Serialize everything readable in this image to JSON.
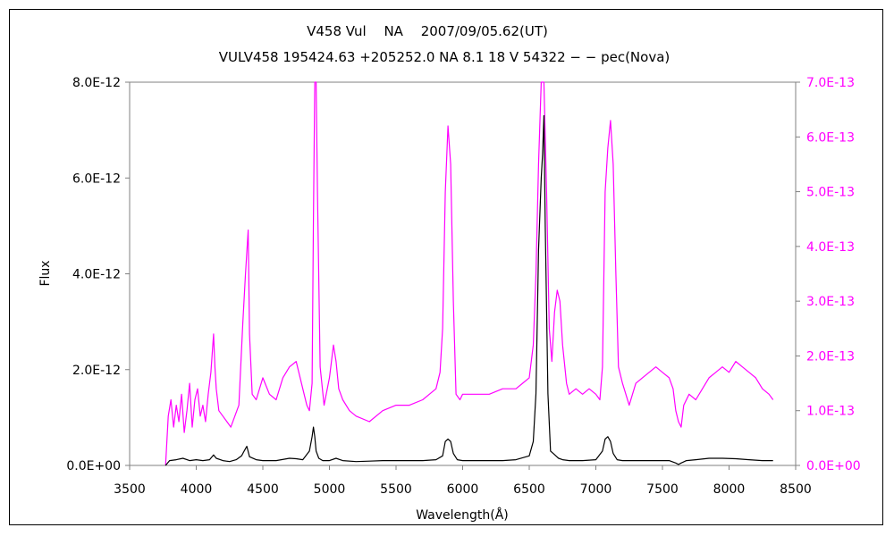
{
  "chart_data": {
    "type": "line",
    "title": "V458 Vul　 NA　 2007/09/05.62(UT)",
    "subtitle": "VULV458 195424.63 +205252.0 NA 8.1 18 V 54322 − − pec(Nova)",
    "xlabel": "Wavelength(Å)",
    "ylabel": "Flux",
    "y2label": "",
    "xlim": [
      3500,
      8500
    ],
    "ylim": [
      0,
      8e-12
    ],
    "y2lim": [
      0,
      7e-13
    ],
    "x_ticks": [
      "3500",
      "4000",
      "4500",
      "5000",
      "5500",
      "6000",
      "6500",
      "7000",
      "7500",
      "8000",
      "8500"
    ],
    "y_ticks": [
      "0.0E+00",
      "2.0E-12",
      "4.0E-12",
      "6.0E-12",
      "8.0E-12"
    ],
    "y2_ticks": [
      "0.0E+00",
      "1.0E-13",
      "2.0E-13",
      "3.0E-13",
      "4.0E-13",
      "5.0E-13",
      "6.0E-13",
      "7.0E-13"
    ],
    "grid": false,
    "legend": "none",
    "colors": {
      "primary": "#000000",
      "secondary": "#ff00ff"
    },
    "series": [
      {
        "axis": "left",
        "x": [
          3770,
          3800,
          3850,
          3900,
          3950,
          4000,
          4050,
          4100,
          4130,
          4150,
          4200,
          4250,
          4300,
          4340,
          4360,
          4380,
          4400,
          4450,
          4500,
          4600,
          4700,
          4750,
          4800,
          4850,
          4870,
          4880,
          4890,
          4900,
          4920,
          4950,
          5000,
          5050,
          5100,
          5200,
          5300,
          5400,
          5500,
          5600,
          5700,
          5800,
          5850,
          5870,
          5890,
          5910,
          5930,
          5960,
          6000,
          6100,
          6200,
          6300,
          6400,
          6500,
          6530,
          6550,
          6570,
          6590,
          6600,
          6610,
          6620,
          6640,
          6660,
          6680,
          6700,
          6720,
          6750,
          6800,
          6900,
          7000,
          7050,
          7070,
          7090,
          7110,
          7130,
          7160,
          7200,
          7300,
          7400,
          7500,
          7550,
          7600,
          7620,
          7640,
          7680,
          7750,
          7850,
          7950,
          8050,
          8150,
          8250,
          8330
        ],
        "y": [
          0.0,
          1e-13,
          1.2e-13,
          1.5e-13,
          1e-13,
          1.2e-13,
          1e-13,
          1.2e-13,
          2.2e-13,
          1.5e-13,
          1e-13,
          8e-14,
          1.2e-13,
          2e-13,
          3e-13,
          4e-13,
          1.8e-13,
          1.2e-13,
          1e-13,
          1e-13,
          1.5e-13,
          1.4e-13,
          1.2e-13,
          3e-13,
          6e-13,
          8e-13,
          6e-13,
          3e-13,
          1.5e-13,
          1e-13,
          1e-13,
          1.5e-13,
          1e-13,
          8e-14,
          9e-14,
          1e-13,
          1e-13,
          1e-13,
          1e-13,
          1.2e-13,
          2e-13,
          5e-13,
          5.5e-13,
          5e-13,
          2.5e-13,
          1.2e-13,
          1e-13,
          1e-13,
          1e-13,
          1e-13,
          1.2e-13,
          2e-13,
          5e-13,
          1.5e-12,
          4.5e-12,
          6e-12,
          6.5e-12,
          7.3e-12,
          5e-12,
          1.5e-12,
          3e-13,
          2.5e-13,
          2e-13,
          1.5e-13,
          1.2e-13,
          1e-13,
          1e-13,
          1.2e-13,
          3e-13,
          5.5e-13,
          6e-13,
          5e-13,
          2.5e-13,
          1.2e-13,
          1e-13,
          1e-13,
          1e-13,
          1e-13,
          1e-13,
          5e-14,
          2e-14,
          5e-14,
          1e-13,
          1.2e-13,
          1.5e-13,
          1.5e-13,
          1.4e-13,
          1.2e-13,
          1e-13,
          1e-13
        ]
      },
      {
        "axis": "right",
        "x": [
          3770,
          3790,
          3810,
          3830,
          3850,
          3870,
          3890,
          3910,
          3930,
          3950,
          3970,
          3990,
          4010,
          4030,
          4050,
          4070,
          4090,
          4110,
          4130,
          4140,
          4150,
          4170,
          4200,
          4230,
          4260,
          4290,
          4320,
          4350,
          4370,
          4390,
          4400,
          4420,
          4450,
          4500,
          4550,
          4600,
          4650,
          4700,
          4750,
          4800,
          4830,
          4850,
          4870,
          4880,
          4890,
          4900,
          4910,
          4930,
          4960,
          5000,
          5030,
          5050,
          5070,
          5100,
          5150,
          5200,
          5300,
          5400,
          5500,
          5600,
          5700,
          5750,
          5800,
          5830,
          5850,
          5870,
          5890,
          5910,
          5930,
          5950,
          5980,
          6000,
          6100,
          6200,
          6300,
          6400,
          6450,
          6500,
          6530,
          6550,
          6570,
          6590,
          6610,
          6630,
          6650,
          6670,
          6690,
          6710,
          6730,
          6750,
          6780,
          6800,
          6850,
          6900,
          6950,
          7000,
          7030,
          7050,
          7070,
          7090,
          7110,
          7130,
          7150,
          7170,
          7200,
          7250,
          7300,
          7350,
          7400,
          7450,
          7500,
          7550,
          7580,
          7600,
          7620,
          7640,
          7660,
          7700,
          7750,
          7800,
          7850,
          7900,
          7950,
          8000,
          8050,
          8100,
          8150,
          8200,
          8250,
          8300,
          8330
        ],
        "y": [
          0.0,
          9e-14,
          1.2e-13,
          7e-14,
          1.1e-13,
          8e-14,
          1.3e-13,
          6e-14,
          1e-13,
          1.5e-13,
          7e-14,
          1.2e-13,
          1.4e-13,
          9e-14,
          1.1e-13,
          8e-14,
          1.3e-13,
          1.7e-13,
          2.4e-13,
          1.8e-13,
          1.4e-13,
          1e-13,
          9e-14,
          8e-14,
          7e-14,
          9e-14,
          1.1e-13,
          2.6e-13,
          3.5e-13,
          4.3e-13,
          2.4e-13,
          1.3e-13,
          1.2e-13,
          1.6e-13,
          1.3e-13,
          1.2e-13,
          1.6e-13,
          1.8e-13,
          1.9e-13,
          1.4e-13,
          1.1e-13,
          1e-13,
          1.5e-13,
          4.5e-13,
          7e-13,
          7e-13,
          5e-13,
          1.8e-13,
          1.1e-13,
          1.6e-13,
          2.2e-13,
          1.9e-13,
          1.4e-13,
          1.2e-13,
          1e-13,
          9e-14,
          8e-14,
          1e-13,
          1.1e-13,
          1.1e-13,
          1.2e-13,
          1.3e-13,
          1.4e-13,
          1.7e-13,
          2.5e-13,
          5e-13,
          6.2e-13,
          5.5e-13,
          3e-13,
          1.3e-13,
          1.2e-13,
          1.3e-13,
          1.3e-13,
          1.3e-13,
          1.4e-13,
          1.4e-13,
          1.5e-13,
          1.6e-13,
          2.2e-13,
          3.5e-13,
          5.5e-13,
          7e-13,
          7e-13,
          5e-13,
          2.5e-13,
          1.9e-13,
          2.8e-13,
          3.2e-13,
          3e-13,
          2.2e-13,
          1.5e-13,
          1.3e-13,
          1.4e-13,
          1.3e-13,
          1.4e-13,
          1.3e-13,
          1.2e-13,
          1.8e-13,
          5e-13,
          5.8e-13,
          6.3e-13,
          5.5e-13,
          3.5e-13,
          1.8e-13,
          1.5e-13,
          1.1e-13,
          1.5e-13,
          1.6e-13,
          1.7e-13,
          1.8e-13,
          1.7e-13,
          1.6e-13,
          1.4e-13,
          1e-13,
          8e-14,
          7e-14,
          1.1e-13,
          1.3e-13,
          1.2e-13,
          1.4e-13,
          1.6e-13,
          1.7e-13,
          1.8e-13,
          1.7e-13,
          1.9e-13,
          1.8e-13,
          1.7e-13,
          1.6e-13,
          1.4e-13,
          1.3e-13,
          1.2e-13
        ]
      }
    ]
  }
}
